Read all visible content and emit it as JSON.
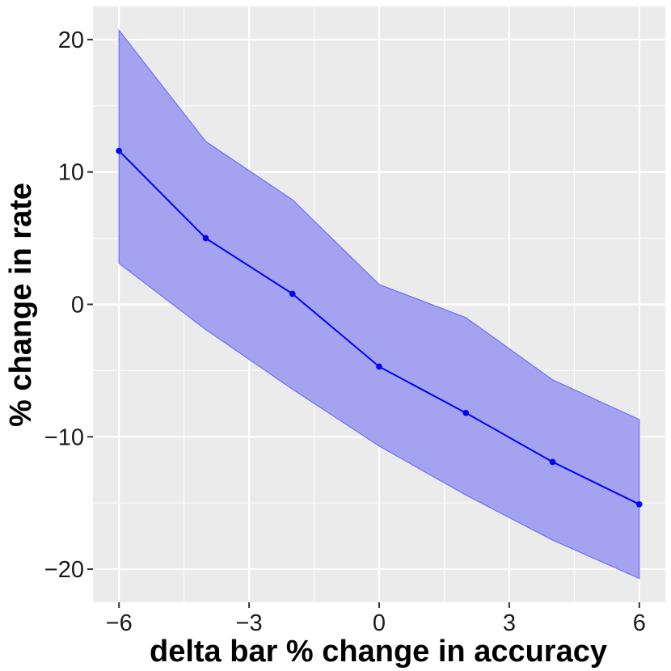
{
  "chart_data": {
    "type": "line",
    "title": "",
    "xlabel": "delta bar % change in accuracy",
    "ylabel": "% change in rate",
    "xlim": [
      -6.6,
      6.6
    ],
    "ylim": [
      -22.5,
      22.5
    ],
    "x_ticks": [
      -6,
      -3,
      0,
      3,
      6
    ],
    "x_tick_labels": [
      "−6",
      "−3",
      "0",
      "3",
      "6"
    ],
    "x_minor_ticks": [
      -4.5,
      -1.5,
      1.5,
      4.5
    ],
    "y_ticks": [
      20,
      10,
      0,
      -10,
      -20
    ],
    "y_tick_labels": [
      "20",
      "10",
      "0",
      "−10",
      "−20"
    ],
    "y_minor_ticks": [
      15,
      5,
      -5,
      -15
    ],
    "grid": true,
    "series": [
      {
        "x": [
          -6,
          -4,
          -2,
          0,
          2,
          4,
          6
        ],
        "y": [
          11.6,
          5.0,
          0.8,
          -4.7,
          -8.2,
          -11.9,
          -15.1
        ],
        "lower": [
          3.1,
          -1.9,
          -6.4,
          -10.7,
          -14.4,
          -17.8,
          -20.7
        ],
        "upper": [
          20.7,
          12.3,
          7.9,
          1.5,
          -1.0,
          -5.7,
          -8.7
        ]
      }
    ],
    "colors": {
      "line": "#0000ff",
      "ribbon_fill": "#a3a3f0",
      "ribbon_stroke": "#7070f5",
      "panel_bg": "#ebebeb",
      "grid": "#ffffff"
    }
  }
}
